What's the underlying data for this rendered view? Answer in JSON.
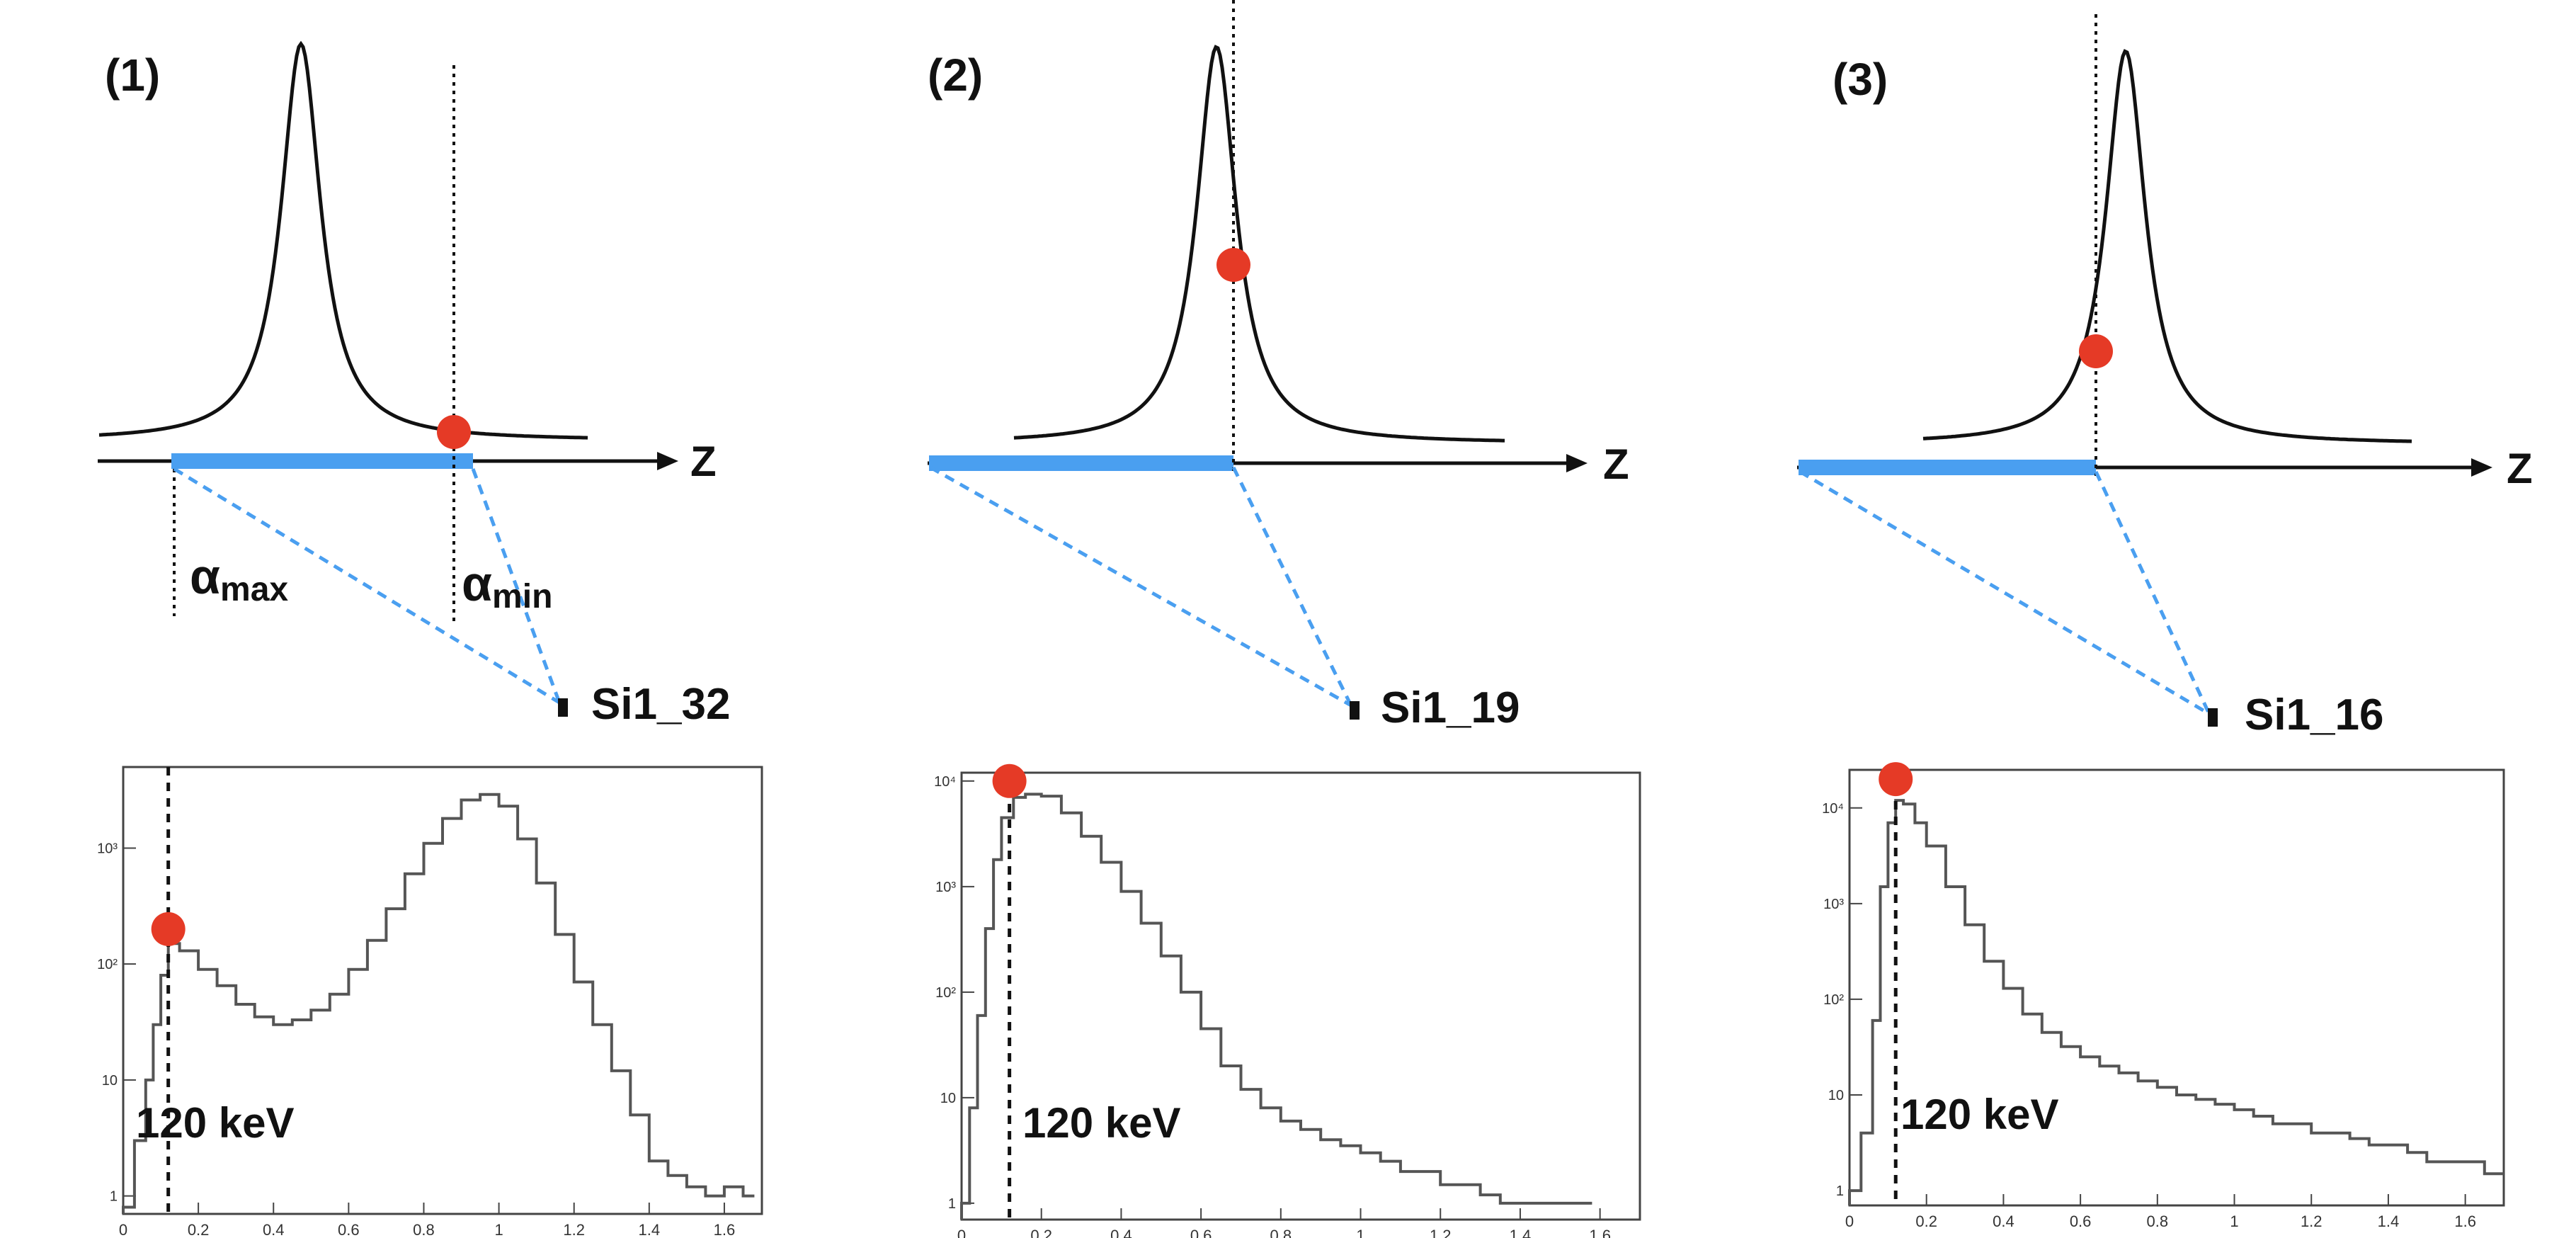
{
  "panels": [
    {
      "label": "(1)",
      "axis_label": "Z",
      "detector": "Si1_32",
      "alpha_max": {
        "base": "α",
        "sub": "max"
      },
      "alpha_min": {
        "base": "α",
        "sub": "min"
      },
      "annotation": "120 keV"
    },
    {
      "label": "(2)",
      "axis_label": "Z",
      "detector": "Si1_19",
      "annotation": "120 keV"
    },
    {
      "label": "(3)",
      "axis_label": "Z",
      "detector": "Si1_16",
      "annotation": "120 keV"
    }
  ],
  "colors": {
    "marker": "#e53a26",
    "target": "#4a9ff0",
    "dashed_lines": "#4a9ff0",
    "curve": "#111111",
    "histogram": "#555555"
  },
  "chart_data": [
    {
      "type": "line",
      "log_y": true,
      "xlim": [
        0,
        1.7
      ],
      "ylim": [
        0.7,
        5000
      ],
      "x_ticks": [
        "0",
        "0.2",
        "0.4",
        "0.6",
        "0.8",
        "1",
        "1.2",
        "1.4",
        "1.6"
      ],
      "y_ticks": [
        "1",
        "10",
        "10²",
        "10³"
      ],
      "marker": {
        "x": 0.12,
        "y": 200
      },
      "cutoff_x": 0.12,
      "x": [
        0,
        0.03,
        0.06,
        0.08,
        0.1,
        0.12,
        0.15,
        0.2,
        0.25,
        0.3,
        0.35,
        0.4,
        0.45,
        0.5,
        0.55,
        0.6,
        0.65,
        0.7,
        0.75,
        0.8,
        0.85,
        0.9,
        0.95,
        1.0,
        1.05,
        1.1,
        1.15,
        1.2,
        1.25,
        1.3,
        1.35,
        1.4,
        1.45,
        1.5,
        1.55,
        1.6,
        1.65
      ],
      "values": [
        0.8,
        3,
        10,
        30,
        80,
        150,
        130,
        90,
        65,
        45,
        35,
        30,
        33,
        40,
        55,
        90,
        160,
        300,
        600,
        1100,
        1800,
        2600,
        2900,
        2300,
        1200,
        500,
        180,
        70,
        30,
        12,
        5,
        2,
        1.5,
        1.2,
        1,
        1.2,
        1
      ]
    },
    {
      "type": "line",
      "log_y": true,
      "xlim": [
        0,
        1.7
      ],
      "ylim": [
        0.7,
        12000
      ],
      "x_ticks": [
        "0",
        "0.2",
        "0.4",
        "0.6",
        "0.8",
        "1",
        "1.2",
        "1.4",
        "1.6"
      ],
      "y_ticks": [
        "1",
        "10",
        "10²",
        "10³",
        "10⁴"
      ],
      "marker": {
        "x": 0.12,
        "y": 10000
      },
      "cutoff_x": 0.12,
      "x": [
        0,
        0.02,
        0.04,
        0.06,
        0.08,
        0.1,
        0.13,
        0.16,
        0.2,
        0.25,
        0.3,
        0.35,
        0.4,
        0.45,
        0.5,
        0.55,
        0.6,
        0.65,
        0.7,
        0.75,
        0.8,
        0.85,
        0.9,
        0.95,
        1.0,
        1.05,
        1.1,
        1.15,
        1.2,
        1.25,
        1.3,
        1.35,
        1.4,
        1.45,
        1.5,
        1.55
      ],
      "values": [
        1,
        8,
        60,
        400,
        1800,
        4500,
        7000,
        7500,
        7200,
        5000,
        3000,
        1700,
        900,
        450,
        220,
        100,
        45,
        20,
        12,
        8,
        6,
        5,
        4,
        3.5,
        3,
        2.5,
        2,
        2,
        1.5,
        1.5,
        1.2,
        1,
        1,
        1,
        1,
        1
      ]
    },
    {
      "type": "line",
      "log_y": true,
      "xlim": [
        0,
        1.7
      ],
      "ylim": [
        0.7,
        25000
      ],
      "x_ticks": [
        "0",
        "0.2",
        "0.4",
        "0.6",
        "0.8",
        "1",
        "1.2",
        "1.4",
        "1.6"
      ],
      "y_ticks": [
        "1",
        "10",
        "10²",
        "10³",
        "10⁴"
      ],
      "marker": {
        "x": 0.12,
        "y": 20000
      },
      "cutoff_x": 0.12,
      "x": [
        0,
        0.03,
        0.06,
        0.08,
        0.1,
        0.12,
        0.14,
        0.17,
        0.2,
        0.25,
        0.3,
        0.35,
        0.4,
        0.45,
        0.5,
        0.55,
        0.6,
        0.65,
        0.7,
        0.75,
        0.8,
        0.85,
        0.9,
        0.95,
        1.0,
        1.05,
        1.1,
        1.15,
        1.2,
        1.25,
        1.3,
        1.35,
        1.4,
        1.45,
        1.5,
        1.55,
        1.6,
        1.65,
        1.7
      ],
      "values": [
        1,
        4,
        60,
        1500,
        7000,
        12000,
        11000,
        7000,
        4000,
        1500,
        600,
        250,
        130,
        70,
        45,
        32,
        25,
        20,
        17,
        14,
        12,
        10,
        9,
        8,
        7,
        6,
        5,
        5,
        4,
        4,
        3.5,
        3,
        3,
        2.5,
        2,
        2,
        2,
        1.5,
        1.5
      ]
    }
  ]
}
